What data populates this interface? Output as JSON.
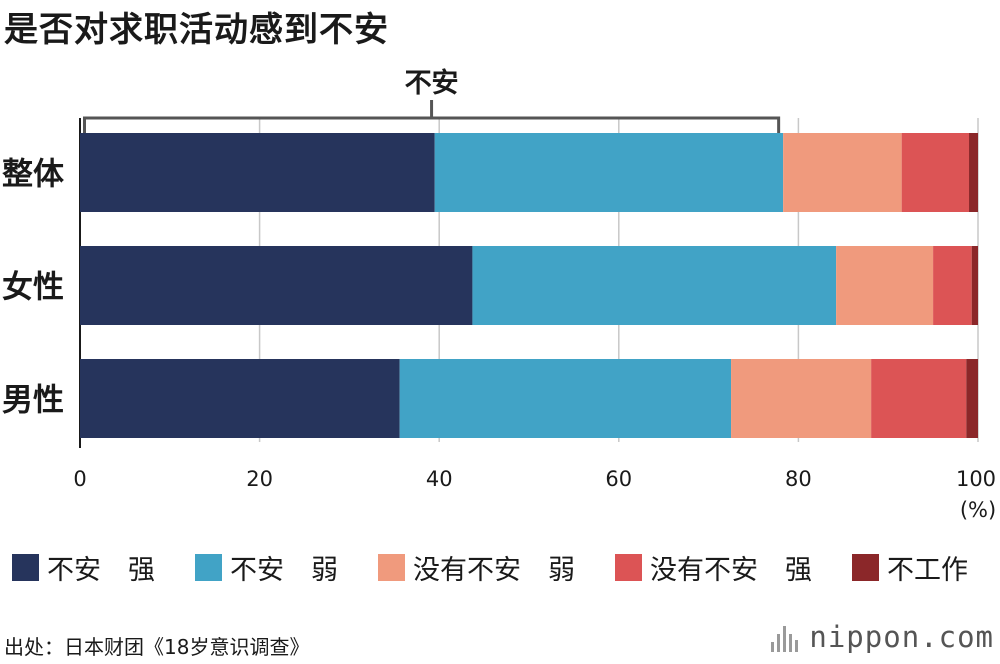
{
  "chart_data": {
    "type": "bar",
    "orientation": "horizontal",
    "stacked": true,
    "title": "是否对求职活动感到不安",
    "categories": [
      "整体",
      "女性",
      "男性"
    ],
    "series": [
      {
        "name": "不安　强",
        "color": "#26345c",
        "values": [
          39.5,
          43.7,
          35.6
        ]
      },
      {
        "name": "不安　弱",
        "color": "#41a3c6",
        "values": [
          38.8,
          40.5,
          36.9
        ]
      },
      {
        "name": "没有不安　弱",
        "color": "#f09a7d",
        "values": [
          13.2,
          10.8,
          15.6
        ]
      },
      {
        "name": "没有不安　强",
        "color": "#dc5455",
        "values": [
          7.5,
          4.3,
          10.6
        ]
      },
      {
        "name": "不工作",
        "color": "#8b2729",
        "values": [
          1.0,
          0.7,
          1.3
        ]
      }
    ],
    "xlim": [
      0,
      100
    ],
    "xticks": [
      "0",
      "20",
      "40",
      "60",
      "80",
      "100"
    ],
    "xunit": "(%)",
    "grid": true,
    "legend_position": "bottom",
    "annotation": {
      "label": "不安",
      "from": 0.5,
      "to": 77.8
    }
  },
  "source": "出处：日本财团《18岁意识调查》",
  "brand": "nippon.com"
}
